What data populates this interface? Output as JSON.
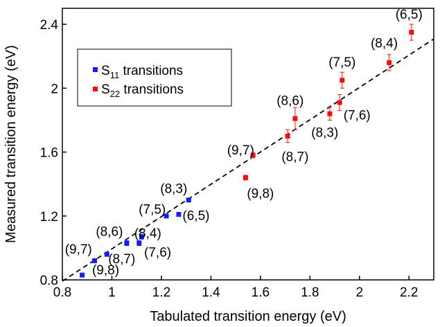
{
  "chart_data": {
    "type": "scatter",
    "xlabel": "Tabulated transition energy (eV)",
    "ylabel": "Measured transition energy (eV)",
    "xlim": [
      0.8,
      2.3
    ],
    "ylim": [
      0.8,
      2.5
    ],
    "xticks": [
      "0.8",
      "1",
      "1.2",
      "1.4",
      "1.6",
      "1.8",
      "2",
      "2.2"
    ],
    "yticks": [
      "0.8",
      "1.2",
      "1.6",
      "2",
      "2.4"
    ],
    "grid": false,
    "legend_position": "top-left",
    "legend": [
      {
        "main": "S",
        "sub": "11",
        "rest": " transitions",
        "color": "#1a1aff"
      },
      {
        "main": "S",
        "sub": "22",
        "rest": " transitions",
        "color": "#ee1111"
      }
    ],
    "fit_line": {
      "x": [
        0.8,
        2.3
      ],
      "y": [
        0.792,
        2.308
      ],
      "style": "dashed"
    },
    "series": [
      {
        "color": "#1a1aff",
        "points": [
          {
            "x": 0.88,
            "y": 0.83,
            "err": 0.01
          },
          {
            "x": 0.93,
            "y": 0.92,
            "err": 0.01
          },
          {
            "x": 0.98,
            "y": 0.96,
            "err": 0.01
          },
          {
            "x": 1.06,
            "y": 1.03,
            "err": 0.015
          },
          {
            "x": 1.11,
            "y": 1.03,
            "err": 0.015
          },
          {
            "x": 1.12,
            "y": 1.07,
            "err": 0.015
          },
          {
            "x": 1.22,
            "y": 1.2,
            "err": 0.01
          },
          {
            "x": 1.27,
            "y": 1.21,
            "err": 0.01
          },
          {
            "x": 1.31,
            "y": 1.3,
            "err": 0.01
          }
        ]
      },
      {
        "color": "#ee1111",
        "points": [
          {
            "x": 1.54,
            "y": 1.44,
            "err": 0.015
          },
          {
            "x": 1.57,
            "y": 1.58,
            "err": 0.015
          },
          {
            "x": 1.71,
            "y": 1.7,
            "err": 0.04
          },
          {
            "x": 1.74,
            "y": 1.81,
            "err": 0.07
          },
          {
            "x": 1.88,
            "y": 1.84,
            "err": 0.04
          },
          {
            "x": 1.92,
            "y": 1.91,
            "err": 0.05
          },
          {
            "x": 1.93,
            "y": 2.05,
            "err": 0.05
          },
          {
            "x": 2.12,
            "y": 2.16,
            "err": 0.05
          },
          {
            "x": 2.21,
            "y": 2.35,
            "err": 0.05
          }
        ]
      }
    ],
    "annotations": [
      {
        "text": "(9,8)",
        "x": 0.975,
        "y": 0.865
      },
      {
        "text": "(8,7)",
        "x": 1.04,
        "y": 0.935
      },
      {
        "text": "(9,7)",
        "x": 0.865,
        "y": 0.995
      },
      {
        "text": "(8,6)",
        "x": 0.99,
        "y": 1.105
      },
      {
        "text": "(8,4)",
        "x": 1.145,
        "y": 1.095
      },
      {
        "text": "(7,6)",
        "x": 1.185,
        "y": 0.975
      },
      {
        "text": "(7,5)",
        "x": 1.163,
        "y": 1.245
      },
      {
        "text": "(6,5)",
        "x": 1.34,
        "y": 1.205
      },
      {
        "text": "(8,3)",
        "x": 1.25,
        "y": 1.375
      },
      {
        "text": "(9,8)",
        "x": 1.6,
        "y": 1.345
      },
      {
        "text": "(9,7)",
        "x": 1.52,
        "y": 1.615
      },
      {
        "text": "(8,7)",
        "x": 1.74,
        "y": 1.575
      },
      {
        "text": "(8,6)",
        "x": 1.72,
        "y": 1.925
      },
      {
        "text": "(8,3)",
        "x": 1.86,
        "y": 1.725
      },
      {
        "text": "(7,6)",
        "x": 1.99,
        "y": 1.835
      },
      {
        "text": "(7,5)",
        "x": 1.93,
        "y": 2.165
      },
      {
        "text": "(8,4)",
        "x": 2.1,
        "y": 2.285
      },
      {
        "text": "(6,5)",
        "x": 2.2,
        "y": 2.465
      }
    ]
  }
}
